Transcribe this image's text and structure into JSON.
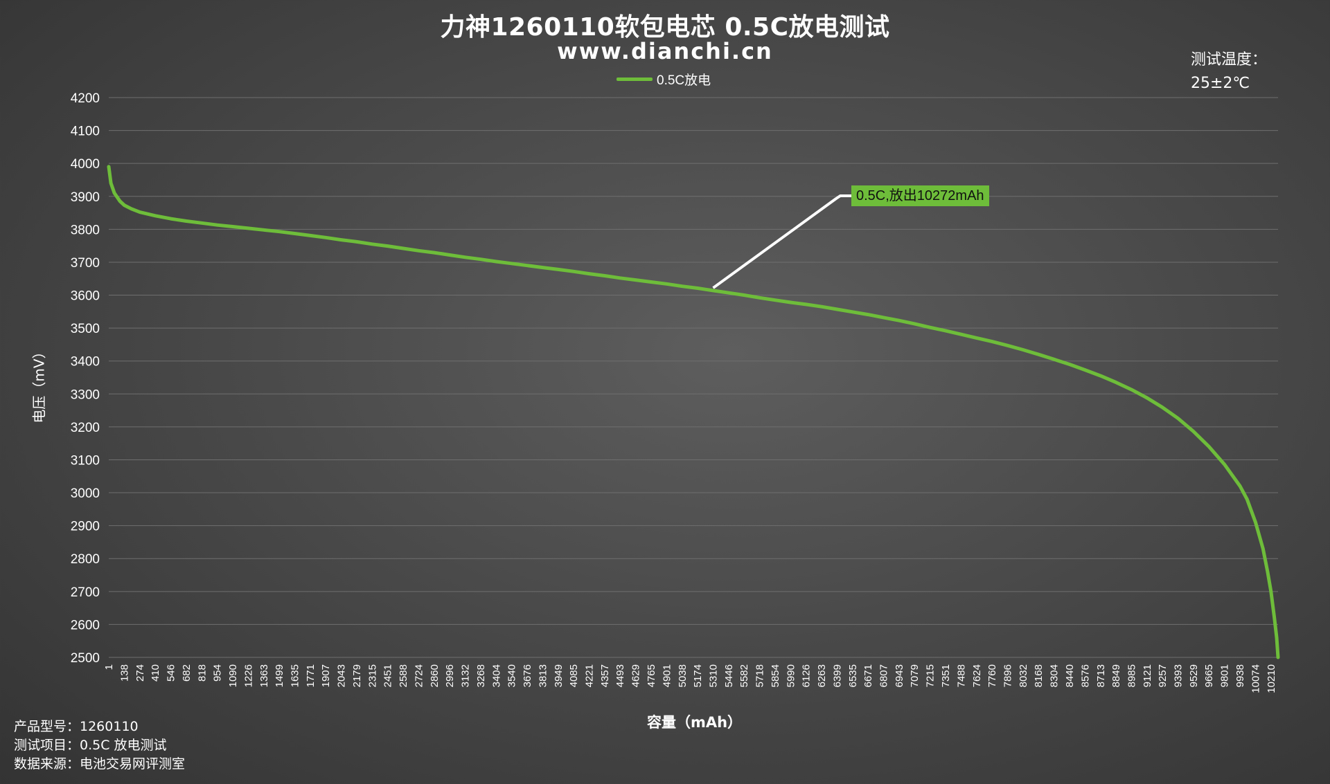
{
  "title": "力神1260110软包电芯 0.5C放电测试",
  "subtitle": "www.dianchi.cn",
  "temperature": {
    "label": "测试温度：",
    "value": "25±2℃"
  },
  "info": [
    "产品型号：1260110",
    "测试项目：0.5C 放电测试",
    "数据来源：电池交易网评测室"
  ],
  "annotation": "0.5C,放出10272mAh",
  "colors": {
    "series": "#6ebd3a",
    "grid": "#6f6f6f",
    "axis_text": "#ffffff",
    "leader_line": "#ffffff"
  },
  "chart_data": {
    "type": "line",
    "title": "力神1260110软包电芯 0.5C放电测试",
    "xlabel": "容量（mAh）",
    "ylabel": "电压（mV）",
    "ylim": [
      2500,
      4200
    ],
    "yticks": [
      2500,
      2600,
      2700,
      2800,
      2900,
      3000,
      3100,
      3200,
      3300,
      3400,
      3500,
      3600,
      3700,
      3800,
      3900,
      4000,
      4100,
      4200
    ],
    "xlim": [
      1,
      10272
    ],
    "xticks": [
      1,
      138,
      274,
      410,
      546,
      682,
      818,
      954,
      1090,
      1226,
      1363,
      1499,
      1635,
      1771,
      1907,
      2043,
      2179,
      2315,
      2451,
      2588,
      2724,
      2860,
      2996,
      3132,
      3268,
      3404,
      3540,
      3676,
      3813,
      3949,
      4085,
      4221,
      4357,
      4493,
      4629,
      4765,
      4901,
      5038,
      5174,
      5310,
      5446,
      5582,
      5718,
      5854,
      5990,
      6126,
      6263,
      6399,
      6535,
      6671,
      6807,
      6943,
      7079,
      7215,
      7351,
      7488,
      7624,
      7760,
      7896,
      8032,
      8168,
      8304,
      8440,
      8576,
      8713,
      8849,
      8985,
      9121,
      9257,
      9393,
      9529,
      9665,
      9801,
      9938,
      10074,
      10210
    ],
    "grid": true,
    "legend_position": "top-center",
    "annotation": {
      "text": "0.5C,放出10272mAh",
      "at_x": 5310,
      "at_y": 3622
    },
    "series": [
      {
        "name": "0.5C放电",
        "x": [
          1,
          20,
          50,
          100,
          138,
          200,
          274,
          410,
          546,
          682,
          818,
          954,
          1090,
          1226,
          1363,
          1499,
          1635,
          1771,
          1907,
          2043,
          2179,
          2315,
          2451,
          2588,
          2724,
          2860,
          2996,
          3132,
          3268,
          3404,
          3540,
          3676,
          3813,
          3949,
          4085,
          4221,
          4357,
          4493,
          4629,
          4765,
          4901,
          5038,
          5174,
          5310,
          5446,
          5582,
          5718,
          5854,
          5990,
          6126,
          6263,
          6399,
          6535,
          6671,
          6807,
          6943,
          7079,
          7215,
          7351,
          7488,
          7624,
          7760,
          7896,
          8032,
          8168,
          8304,
          8440,
          8576,
          8713,
          8849,
          8985,
          9121,
          9257,
          9393,
          9529,
          9665,
          9801,
          9938,
          10000,
          10074,
          10140,
          10180,
          10210,
          10240,
          10260,
          10272
        ],
        "y": [
          3990,
          3940,
          3910,
          3885,
          3873,
          3862,
          3852,
          3841,
          3832,
          3825,
          3819,
          3813,
          3808,
          3803,
          3798,
          3793,
          3787,
          3781,
          3775,
          3768,
          3762,
          3755,
          3749,
          3742,
          3735,
          3729,
          3722,
          3715,
          3709,
          3702,
          3696,
          3690,
          3684,
          3678,
          3672,
          3665,
          3659,
          3652,
          3646,
          3640,
          3634,
          3627,
          3621,
          3614,
          3607,
          3600,
          3592,
          3585,
          3578,
          3572,
          3565,
          3557,
          3549,
          3541,
          3532,
          3523,
          3513,
          3502,
          3492,
          3481,
          3470,
          3459,
          3447,
          3434,
          3420,
          3405,
          3390,
          3373,
          3355,
          3335,
          3313,
          3288,
          3259,
          3226,
          3186,
          3140,
          3086,
          3020,
          2980,
          2910,
          2830,
          2760,
          2700,
          2620,
          2560,
          2500
        ]
      }
    ]
  }
}
